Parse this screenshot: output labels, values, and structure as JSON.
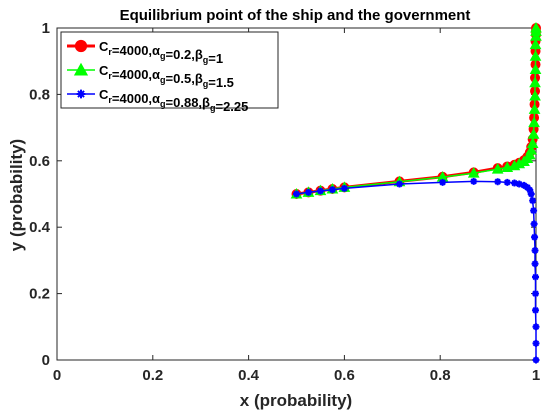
{
  "chart_data": {
    "type": "line",
    "title": "Equilibrium point of the ship and the government",
    "xlabel": "x (probability)",
    "ylabel": "y (probability)",
    "xlim": [
      0,
      1
    ],
    "ylim": [
      0,
      1
    ],
    "xticks": [
      "0",
      "0.2",
      "0.4",
      "0.6",
      "0.8",
      "1"
    ],
    "yticks": [
      "0",
      "0.2",
      "0.4",
      "0.6",
      "0.8",
      "1"
    ],
    "grid": false,
    "legend_position": "top-left",
    "series": [
      {
        "color": "#ff0000",
        "marker": "circle",
        "legend": {
          "main": "C",
          "sub1": "r",
          "mid1": "=4000,",
          "greek1": "α",
          "sub2": "g",
          "mid2": "=0.2,",
          "greek2": "β",
          "sub3": "g",
          "tail": "=1"
        },
        "points": [
          [
            0.5,
            0.5
          ],
          [
            0.525,
            0.505
          ],
          [
            0.55,
            0.51
          ],
          [
            0.575,
            0.515
          ],
          [
            0.6,
            0.52
          ],
          [
            0.715,
            0.538
          ],
          [
            0.805,
            0.552
          ],
          [
            0.87,
            0.565
          ],
          [
            0.92,
            0.578
          ],
          [
            0.94,
            0.583
          ],
          [
            0.955,
            0.588
          ],
          [
            0.965,
            0.594
          ],
          [
            0.975,
            0.602
          ],
          [
            0.982,
            0.612
          ],
          [
            0.987,
            0.625
          ],
          [
            0.99,
            0.642
          ],
          [
            0.993,
            0.665
          ],
          [
            0.995,
            0.695
          ],
          [
            0.996,
            0.73
          ],
          [
            0.997,
            0.77
          ],
          [
            0.998,
            0.81
          ],
          [
            0.998,
            0.85
          ],
          [
            0.999,
            0.89
          ],
          [
            0.999,
            0.93
          ],
          [
            0.999,
            0.96
          ],
          [
            1.0,
            0.98
          ],
          [
            1.0,
            0.99
          ],
          [
            1.0,
            1.0
          ]
        ]
      },
      {
        "color": "#00ff00",
        "marker": "triangle",
        "legend": {
          "main": "C",
          "sub1": "r",
          "mid1": "=4000,",
          "greek1": "α",
          "sub2": "g",
          "mid2": "=0.5,",
          "greek2": "β",
          "sub3": "g",
          "tail": "=1.5"
        },
        "points": [
          [
            0.5,
            0.5
          ],
          [
            0.525,
            0.505
          ],
          [
            0.55,
            0.51
          ],
          [
            0.575,
            0.515
          ],
          [
            0.6,
            0.52
          ],
          [
            0.715,
            0.537
          ],
          [
            0.805,
            0.551
          ],
          [
            0.87,
            0.563
          ],
          [
            0.92,
            0.575
          ],
          [
            0.94,
            0.58
          ],
          [
            0.955,
            0.585
          ],
          [
            0.965,
            0.591
          ],
          [
            0.975,
            0.598
          ],
          [
            0.982,
            0.607
          ],
          [
            0.987,
            0.618
          ],
          [
            0.99,
            0.632
          ],
          [
            0.993,
            0.652
          ],
          [
            0.995,
            0.68
          ],
          [
            0.996,
            0.715
          ],
          [
            0.997,
            0.755
          ],
          [
            0.998,
            0.795
          ],
          [
            0.998,
            0.835
          ],
          [
            0.999,
            0.875
          ],
          [
            0.999,
            0.915
          ],
          [
            0.999,
            0.95
          ],
          [
            1.0,
            0.975
          ],
          [
            1.0,
            0.99
          ],
          [
            1.0,
            1.0
          ]
        ]
      },
      {
        "color": "#0000ff",
        "marker": "star",
        "legend": {
          "main": "C",
          "sub1": "r",
          "mid1": "=4000,",
          "greek1": "α",
          "sub2": "g",
          "mid2": "=0.88,",
          "greek2": "β",
          "sub3": "g",
          "tail": "=2.25"
        },
        "points": [
          [
            0.5,
            0.5
          ],
          [
            0.525,
            0.505
          ],
          [
            0.55,
            0.509
          ],
          [
            0.575,
            0.513
          ],
          [
            0.6,
            0.517
          ],
          [
            0.715,
            0.53
          ],
          [
            0.805,
            0.535
          ],
          [
            0.87,
            0.538
          ],
          [
            0.92,
            0.537
          ],
          [
            0.94,
            0.535
          ],
          [
            0.955,
            0.533
          ],
          [
            0.965,
            0.53
          ],
          [
            0.975,
            0.526
          ],
          [
            0.982,
            0.52
          ],
          [
            0.987,
            0.512
          ],
          [
            0.99,
            0.5
          ],
          [
            0.993,
            0.48
          ],
          [
            0.995,
            0.45
          ],
          [
            0.996,
            0.41
          ],
          [
            0.997,
            0.37
          ],
          [
            0.998,
            0.33
          ],
          [
            0.998,
            0.29
          ],
          [
            0.999,
            0.25
          ],
          [
            0.999,
            0.2
          ],
          [
            0.999,
            0.15
          ],
          [
            1.0,
            0.1
          ],
          [
            1.0,
            0.05
          ],
          [
            1.0,
            0.0
          ]
        ]
      }
    ]
  }
}
